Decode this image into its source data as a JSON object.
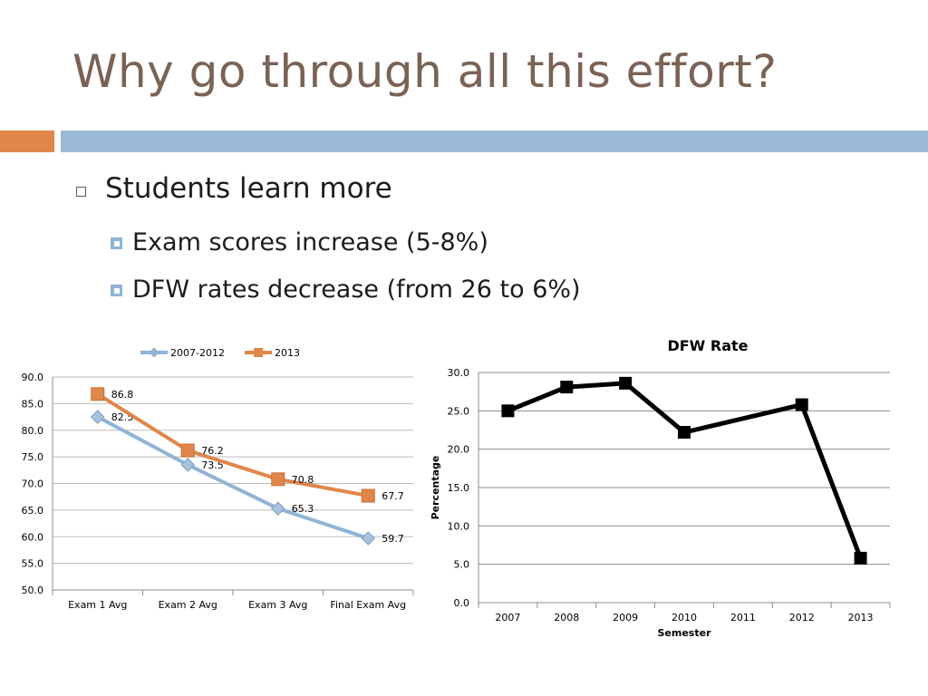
{
  "slide": {
    "title": "Why go through all this effort?",
    "accent_colors": {
      "orange": "#e0864a",
      "blue": "#9bbad6",
      "title": "#7a6255"
    }
  },
  "bullets": {
    "main": "Students learn more",
    "subs": [
      "Exam scores increase (5-8%)",
      "DFW rates decrease (from 26 to 6%)"
    ]
  },
  "chart_data": [
    {
      "type": "line",
      "title": "",
      "categories": [
        "Exam 1 Avg",
        "Exam 2 Avg",
        "Exam 3 Avg",
        "Final Exam Avg"
      ],
      "series": [
        {
          "name": "2007-2012",
          "values": [
            82.5,
            73.5,
            65.3,
            59.7
          ],
          "color": "#8fb4d6",
          "marker": "diamond"
        },
        {
          "name": "2013",
          "values": [
            86.8,
            76.2,
            70.8,
            67.7
          ],
          "color": "#e0864a",
          "marker": "square"
        }
      ],
      "ylim": [
        50,
        90
      ],
      "yticks": [
        "50.0",
        "55.0",
        "60.0",
        "65.0",
        "70.0",
        "75.0",
        "80.0",
        "85.0",
        "90.0"
      ],
      "xlabel": "",
      "ylabel": "",
      "grid": true,
      "legend": "top",
      "data_labels": [
        "82.5",
        "73.5",
        "65.3",
        "59.7",
        "86.8",
        "76.2",
        "70.8",
        "67.7"
      ]
    },
    {
      "type": "line",
      "title": "DFW Rate",
      "categories": [
        "2007",
        "2008",
        "2009",
        "2010",
        "2011",
        "2012",
        "2013"
      ],
      "series": [
        {
          "values": [
            25.0,
            28.1,
            28.6,
            22.2,
            null,
            25.8,
            5.8
          ],
          "color": "#000000",
          "marker": "square"
        }
      ],
      "ylim": [
        0,
        30
      ],
      "yticks": [
        "0.0",
        "5.0",
        "10.0",
        "15.0",
        "20.0",
        "25.0",
        "30.0"
      ],
      "xlabel": "Semester",
      "ylabel": "Percentage",
      "grid": true
    }
  ]
}
